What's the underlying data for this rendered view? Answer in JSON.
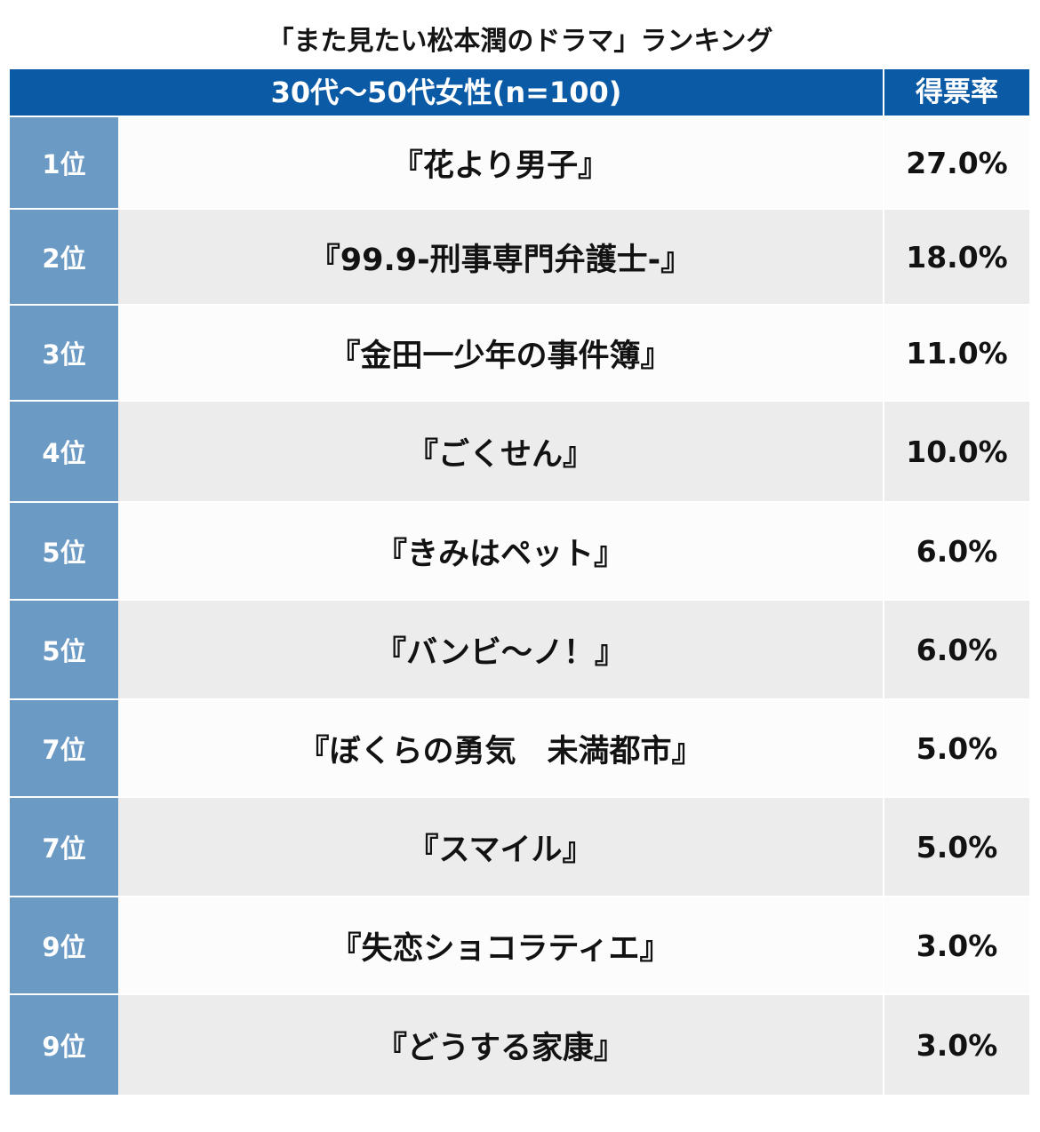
{
  "title": "「また見たい松本潤のドラマ」ランキング",
  "header": {
    "group_label": "30代〜50代女性(n=100)",
    "rate_label": "得票率"
  },
  "colors": {
    "header_bg": "#0b5aa5",
    "rank_bg": "#6b9ac4",
    "row_light": "#fcfcfc",
    "row_dark": "#ececec"
  },
  "rows": [
    {
      "rank": "1位",
      "drama": "『花より男子』",
      "rate": "27.0%"
    },
    {
      "rank": "2位",
      "drama": "『99.9-刑事専門弁護士-』",
      "rate": "18.0%"
    },
    {
      "rank": "3位",
      "drama": "『金田一少年の事件簿』",
      "rate": "11.0%"
    },
    {
      "rank": "4位",
      "drama": "『ごくせん』",
      "rate": "10.0%"
    },
    {
      "rank": "5位",
      "drama": "『きみはペット』",
      "rate": "6.0%"
    },
    {
      "rank": "5位",
      "drama": "『バンビ〜ノ！』",
      "rate": "6.0%"
    },
    {
      "rank": "7位",
      "drama": "『ぼくらの勇気　未満都市』",
      "rate": "5.0%"
    },
    {
      "rank": "7位",
      "drama": "『スマイル』",
      "rate": "5.0%"
    },
    {
      "rank": "9位",
      "drama": "『失恋ショコラティエ』",
      "rate": "3.0%"
    },
    {
      "rank": "9位",
      "drama": "『どうする家康』",
      "rate": "3.0%"
    }
  ]
}
